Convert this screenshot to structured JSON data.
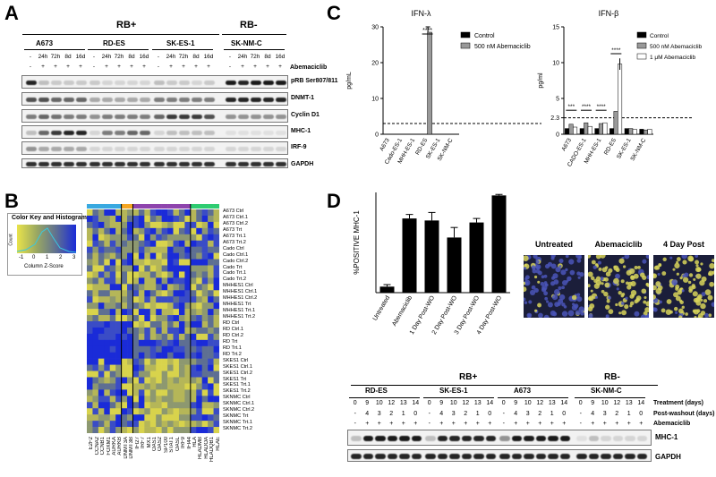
{
  "panels": {
    "a": "A",
    "b": "B",
    "c": "C",
    "d": "D"
  },
  "panelA": {
    "groups": [
      {
        "label": "RB+"
      },
      {
        "label": "RB-"
      }
    ],
    "cells": [
      "A673",
      "RD-ES",
      "SK-ES-1",
      "SK-NM-C"
    ],
    "times": [
      "-",
      "24h",
      "72h",
      "8d",
      "16d"
    ],
    "treat": [
      "-",
      "+",
      "+",
      "+",
      "+"
    ],
    "treatment_label": "Abemaciclib",
    "blots": [
      "pRB Ser807/811",
      "DNMT-1",
      "Cyclin D1",
      "MHC-1",
      "IRF-9",
      "GAPDH"
    ]
  },
  "panelB": {
    "color_key_title": "Color Key and Histogram",
    "count_label": "Count",
    "zscore_label": "Column Z-Score",
    "zscore_ticks": [
      "-1",
      "0",
      "1",
      "2",
      "3"
    ],
    "rows": [
      "A673 Ctrl",
      "A673 Ctrl.1",
      "A673 Ctrl.2",
      "A673 Trt",
      "A673 Trt.1",
      "A673 Trt.2",
      "Cado Ctrl",
      "Cado Ctrl.1",
      "Cado Ctrl.2",
      "Cado Trt",
      "Cado Trt.1",
      "Cado Trt.2",
      "MHHES1 Ctrl",
      "MHHES1 Ctrl.1",
      "MHHES1 Ctrl.2",
      "MHHES1 Trt",
      "MHHES1 Trt.1",
      "MHHES1 Trt.2",
      "RD Ctrl",
      "RD Ctrl.1",
      "RD Ctrl.2",
      "RD Trt",
      "RD Trt.1",
      "RD Trt.2",
      "SKES1 Ctrl",
      "SKES1 Ctrl.1",
      "SKES1 Ctrl.2",
      "SKES1 Trt",
      "SKES1 Trt.1",
      "SKES1 Trt.2",
      "SKNMC Ctrl",
      "SKNMC Ctrl.1",
      "SKNMC Ctrl.2",
      "SKNMC Trt",
      "SKNMC Trt.1",
      "SKNMC Trt.2"
    ],
    "cols": [
      "E2F2",
      "CCNA2",
      "CCNB1",
      "FOXM1",
      "AURKA",
      "AURKB",
      "DNMT3A",
      "DNMT3B",
      "IFI27",
      "IRF7",
      "MX1",
      "OAS1",
      "OAS2",
      "SP100",
      "STAT1",
      "OASL",
      "IRF9",
      "IFI44",
      "HLA",
      "HLADMB",
      "HLADOA",
      "HLADQB1",
      "HLAE"
    ],
    "col_bar_colors": [
      "#39a9e0",
      "#39a9e0",
      "#39a9e0",
      "#39a9e0",
      "#39a9e0",
      "#39a9e0",
      "#f5a623",
      "#f5a623",
      "#8e44ad",
      "#8e44ad",
      "#8e44ad",
      "#8e44ad",
      "#8e44ad",
      "#8e44ad",
      "#8e44ad",
      "#8e44ad",
      "#8e44ad",
      "#8e44ad",
      "#2ecc71",
      "#2ecc71",
      "#2ecc71",
      "#2ecc71",
      "#2ecc71"
    ]
  },
  "chart_data": [
    {
      "type": "bar",
      "title": "IFN-λ",
      "ylabel": "pg/mL",
      "ylim": [
        0,
        30
      ],
      "yticks": [
        "0",
        "10",
        "20",
        "30"
      ],
      "categories": [
        "A673",
        "Cado-ES-1",
        "MHH-ES-1",
        "RD-ES",
        "SK-ES-1",
        "SK-NM-C"
      ],
      "series": [
        {
          "name": "Control",
          "values": [
            0,
            0,
            0,
            0,
            0,
            0
          ],
          "color": "#000000"
        },
        {
          "name": "500 nM Abemaciclib",
          "values": [
            0,
            0,
            0,
            28.5,
            0,
            0
          ],
          "color": "#999999"
        }
      ],
      "errors": [
        0,
        0,
        0,
        1.5,
        0,
        0
      ],
      "annotations": [
        "****"
      ],
      "threshold": 3
    },
    {
      "type": "bar",
      "title": "IFN-β",
      "ylabel": "pg/ml",
      "ylim": [
        0,
        15
      ],
      "yticks": [
        "0",
        "2.3",
        "5",
        "10",
        "15"
      ],
      "categories": [
        "A673",
        "CADO-ES-1",
        "MHH-ES-1",
        "RD-ES",
        "SK-ES-1",
        "SK-NM-C"
      ],
      "series": [
        {
          "name": "Control",
          "values": [
            0.8,
            0.8,
            0.8,
            0.8,
            0.8,
            0.7
          ],
          "color": "#000000"
        },
        {
          "name": "500 nM Abemaciclib",
          "values": [
            1.4,
            1.6,
            1.5,
            3.2,
            0.8,
            0.6
          ],
          "color": "#999999"
        },
        {
          "name": "1 μM Abemaciclib",
          "values": [
            1.0,
            1.1,
            1.6,
            9.8,
            0.7,
            0.7
          ],
          "color": "#ffffff"
        }
      ],
      "annotations": [
        "***",
        "****",
        "****",
        "****"
      ],
      "threshold": 2.3
    },
    {
      "type": "bar",
      "ylabel": "%POSITIVE MHC-1",
      "ylim": [
        0,
        100
      ],
      "categories": [
        "Untreated",
        "Abemaciclib",
        "1 Day Post-WO",
        "2 Day Post-WO",
        "3 Day Post-WO",
        "4 Day Post-WO"
      ],
      "values": [
        6,
        74,
        72,
        55,
        70,
        97
      ],
      "errors": [
        2,
        4,
        8,
        10,
        4,
        1
      ]
    }
  ],
  "panelD": {
    "images": [
      "Untreated",
      "Abemaciclib",
      "4 Day Post"
    ],
    "groups": [
      {
        "label": "RB+"
      },
      {
        "label": "RB-"
      }
    ],
    "cells": [
      "RD-ES",
      "SK-ES-1",
      "A673",
      "SK-NM-C"
    ],
    "days": [
      "0",
      "9",
      "10",
      "12",
      "13",
      "14"
    ],
    "washout": [
      "-",
      "4",
      "3",
      "2",
      "1",
      "0"
    ],
    "treat": [
      "-",
      "+",
      "+",
      "+",
      "+",
      "+"
    ],
    "row_labels": [
      "Treatment (days)",
      "Post-washout (days)",
      "Abemaciclib"
    ],
    "blots": [
      "MHC-1",
      "GAPDH"
    ]
  }
}
